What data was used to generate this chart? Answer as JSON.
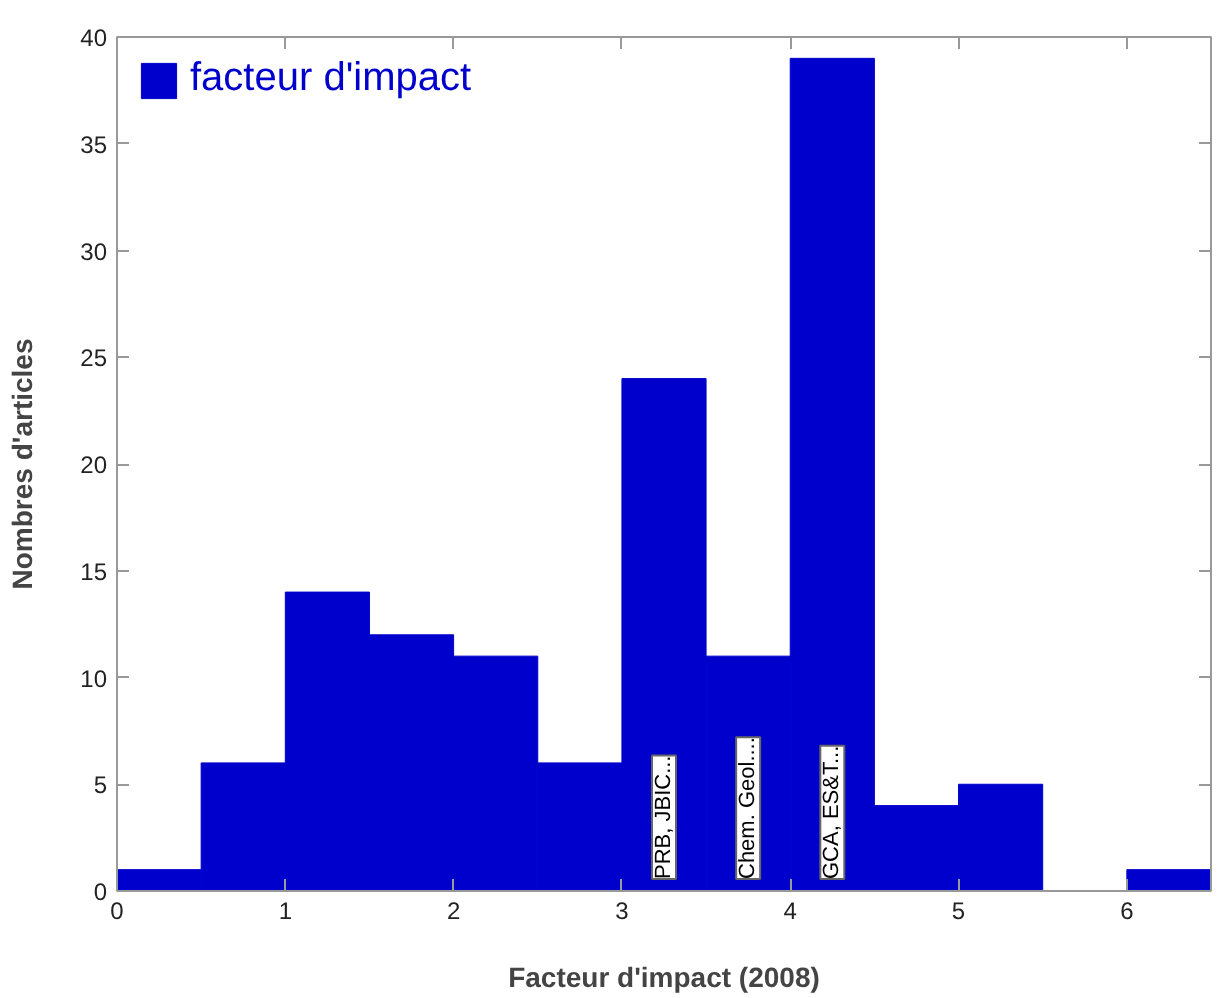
{
  "chart_data": {
    "type": "histogram",
    "xlabel": "Facteur d'impact (2008)",
    "ylabel": "Nombres d'articles",
    "bins": [
      0,
      0.5,
      1,
      1.5,
      2,
      2.5,
      3,
      3.5,
      4,
      4.5,
      5,
      5.5,
      6,
      6.5
    ],
    "series": [
      {
        "name": "facteur d'impact",
        "color": "#0000cc",
        "values": [
          1,
          6,
          14,
          12,
          11,
          6,
          24,
          11,
          39,
          4,
          5,
          0,
          1
        ]
      }
    ],
    "xlim": [
      0,
      6.5
    ],
    "ylim": [
      0,
      40
    ],
    "xticks": [
      0,
      1,
      2,
      3,
      4,
      5,
      6
    ],
    "yticks": [
      0,
      5,
      10,
      15,
      20,
      25,
      30,
      35,
      40
    ],
    "annotations": [
      "PRB, JBIC...",
      "Chem. Geol....",
      "GCA, ES&T..."
    ],
    "grid": false,
    "legend": "top left"
  }
}
